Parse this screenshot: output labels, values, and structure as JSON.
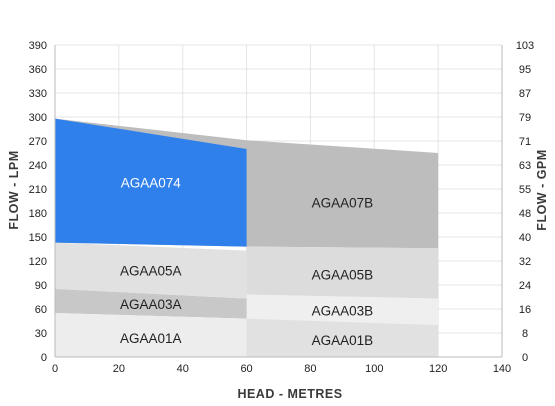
{
  "chart_data": {
    "type": "area",
    "xlabel": "HEAD - METRES",
    "ylabel": "FLOW - LPM",
    "y2label": "FLOW - GPM",
    "xlim": [
      0,
      140
    ],
    "ylim": [
      0,
      390
    ],
    "x_ticks": [
      "0",
      "20",
      "40",
      "60",
      "80",
      "100",
      "120",
      "140"
    ],
    "y_ticks": [
      "0",
      "30",
      "60",
      "90",
      "120",
      "150",
      "180",
      "210",
      "240",
      "270",
      "300",
      "330",
      "360",
      "390"
    ],
    "y2_ticks": [
      "0",
      "8",
      "16",
      "24",
      "32",
      "40",
      "48",
      "55",
      "63",
      "71",
      "79",
      "87",
      "95",
      "103"
    ],
    "grid": true,
    "regions": [
      {
        "name": "AGAA07B",
        "color": "#bdbdbd",
        "label_color": "#222222",
        "upper": [
          [
            0,
            298
          ],
          [
            60,
            271
          ],
          [
            120,
            255
          ]
        ],
        "lower": [
          [
            0,
            143
          ],
          [
            60,
            138
          ],
          [
            120,
            136
          ]
        ],
        "label_at": [
          90,
          193
        ]
      },
      {
        "name": "AGAA05B",
        "color": "#dcdcdc",
        "label_color": "#222222",
        "upper": [
          [
            60,
            138
          ],
          [
            120,
            136
          ]
        ],
        "lower": [
          [
            60,
            78
          ],
          [
            120,
            73
          ]
        ],
        "label_at": [
          90,
          103
        ]
      },
      {
        "name": "AGAA03B",
        "color": "#efefef",
        "label_color": "#222222",
        "upper": [
          [
            60,
            78
          ],
          [
            120,
            73
          ]
        ],
        "lower": [
          [
            60,
            48
          ],
          [
            120,
            40
          ]
        ],
        "label_at": [
          90,
          58
        ]
      },
      {
        "name": "AGAA01B",
        "color": "#e1e1e1",
        "label_color": "#222222",
        "upper": [
          [
            60,
            48
          ],
          [
            120,
            40
          ]
        ],
        "lower": [
          [
            60,
            0
          ],
          [
            120,
            0
          ]
        ],
        "label_at": [
          90,
          21
        ]
      },
      {
        "name": "AGAA05A",
        "color": "#e1e1e1",
        "label_color": "#222222",
        "upper": [
          [
            0,
            143
          ],
          [
            60,
            133
          ]
        ],
        "lower": [
          [
            0,
            85
          ],
          [
            60,
            73
          ]
        ],
        "label_at": [
          30,
          108
        ]
      },
      {
        "name": "AGAA03A",
        "color": "#c8c8c8",
        "label_color": "#222222",
        "upper": [
          [
            0,
            85
          ],
          [
            60,
            73
          ]
        ],
        "lower": [
          [
            0,
            55
          ],
          [
            60,
            48
          ]
        ],
        "label_at": [
          30,
          66
        ]
      },
      {
        "name": "AGAA01A",
        "color": "#ededed",
        "label_color": "#222222",
        "upper": [
          [
            0,
            55
          ],
          [
            60,
            48
          ]
        ],
        "lower": [
          [
            0,
            0
          ],
          [
            60,
            0
          ]
        ],
        "label_at": [
          30,
          24
        ]
      },
      {
        "name": "AGAA074",
        "color": "#2f80ea",
        "label_color": "#ffffff",
        "upper": [
          [
            0,
            298
          ],
          [
            60,
            260
          ]
        ],
        "lower": [
          [
            0,
            143
          ],
          [
            60,
            138
          ]
        ],
        "label_at": [
          30,
          218
        ]
      }
    ]
  }
}
